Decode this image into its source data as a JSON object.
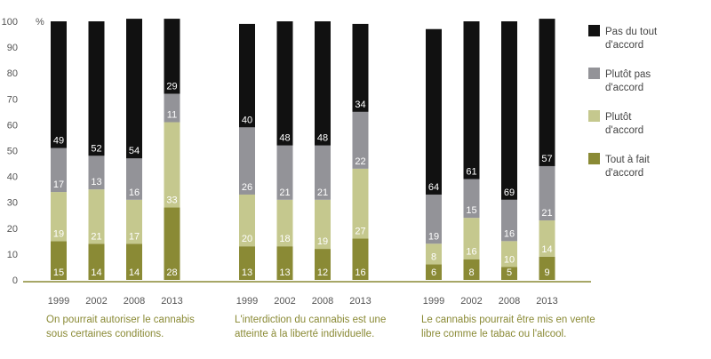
{
  "chart_data": {
    "type": "bar",
    "stacked": true,
    "unit_label": "%",
    "ylim": [
      0,
      100
    ],
    "yticks": [
      0,
      10,
      20,
      30,
      40,
      50,
      60,
      70,
      80,
      90,
      100
    ],
    "legend_position": "right",
    "series": [
      {
        "key": "tout_a_fait",
        "name_lines": [
          "Tout à fait",
          "d'accord"
        ],
        "color": "#8a8a35"
      },
      {
        "key": "plutot",
        "name_lines": [
          "Plutôt",
          "d'accord"
        ],
        "color": "#c5c88e"
      },
      {
        "key": "plutot_pas",
        "name_lines": [
          "Plutôt pas",
          "d'accord"
        ],
        "color": "#939398"
      },
      {
        "key": "pas_du_tout",
        "name_lines": [
          "Pas du tout",
          "d'accord"
        ],
        "color": "#111111"
      }
    ],
    "groups": [
      {
        "caption_lines": [
          "On pourrait autoriser le cannabis",
          "sous certaines conditions."
        ],
        "bars": [
          {
            "year": "1999",
            "values": [
              15,
              19,
              17,
              49
            ]
          },
          {
            "year": "2002",
            "values": [
              14,
              21,
              13,
              52
            ]
          },
          {
            "year": "2008",
            "values": [
              14,
              17,
              16,
              54
            ]
          },
          {
            "year": "2013",
            "values": [
              28,
              33,
              11,
              29
            ]
          }
        ]
      },
      {
        "caption_lines": [
          "L'interdiction du cannabis est une",
          "atteinte à la liberté individuelle."
        ],
        "bars": [
          {
            "year": "1999",
            "values": [
              13,
              20,
              26,
              40
            ]
          },
          {
            "year": "2002",
            "values": [
              13,
              18,
              21,
              48
            ]
          },
          {
            "year": "2008",
            "values": [
              12,
              19,
              21,
              48
            ]
          },
          {
            "year": "2013",
            "values": [
              16,
              27,
              22,
              34
            ]
          }
        ]
      },
      {
        "caption_lines": [
          "Le cannabis pourrait être mis en vente",
          "libre comme le tabac ou l'alcool."
        ],
        "bars": [
          {
            "year": "1999",
            "values": [
              6,
              8,
              19,
              64
            ]
          },
          {
            "year": "2002",
            "values": [
              8,
              16,
              15,
              61
            ]
          },
          {
            "year": "2008",
            "values": [
              5,
              10,
              16,
              69
            ]
          },
          {
            "year": "2013",
            "values": [
              9,
              14,
              21,
              57
            ]
          }
        ]
      }
    ],
    "colors": {
      "axis": "#8a8a35",
      "tick_label": "#555555",
      "caption": "#8a8a35",
      "legend_text": "#444444",
      "label_on_dark": "#ffffff",
      "label_on_light": "#ffffff"
    }
  }
}
